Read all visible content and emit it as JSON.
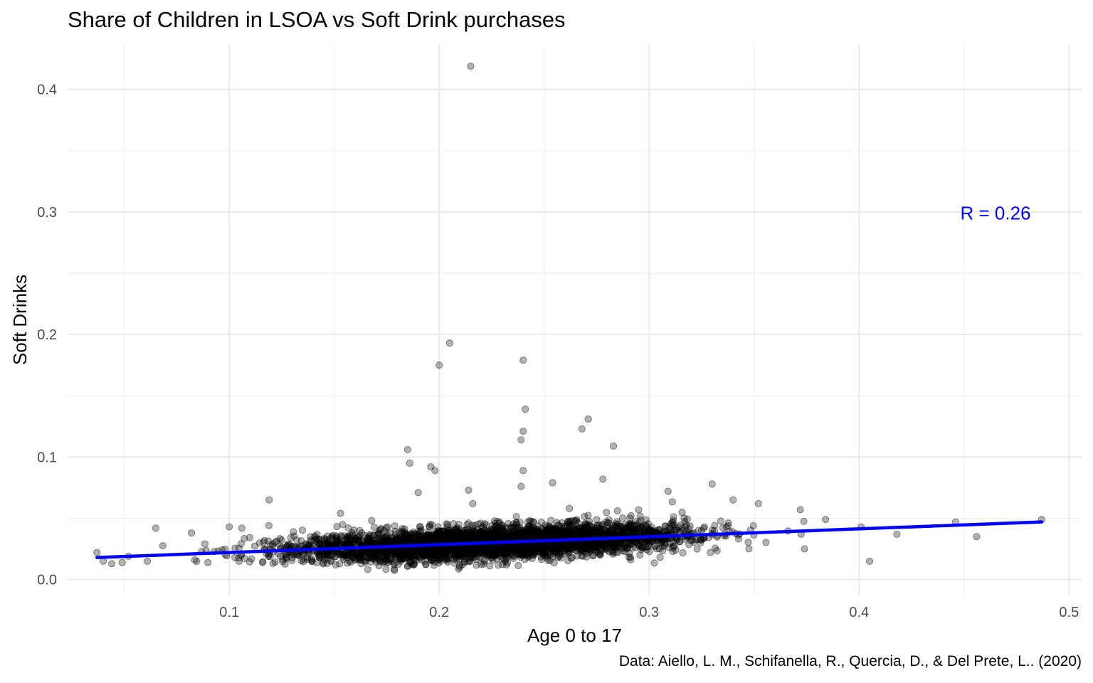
{
  "chart_data": {
    "type": "scatter",
    "title": "Share of Children in LSOA vs Soft Drink purchases",
    "xlabel": "Age 0 to 17",
    "ylabel": "Soft Drinks",
    "caption": "Data: Aiello, L. M., Schifanella, R., Quercia, D., & Del Prete, L.. (2020)",
    "xlim": [
      0.023,
      0.506
    ],
    "ylim": [
      -0.013,
      0.437
    ],
    "x_ticks": [
      "0.1",
      "0.2",
      "0.3",
      "0.4",
      "0.5"
    ],
    "y_ticks": [
      "0.0",
      "0.1",
      "0.2",
      "0.3",
      "0.4"
    ],
    "grid": true,
    "annotation": {
      "text": "R = 0.26",
      "x": 0.465,
      "y": 0.299,
      "color": "#0000ff"
    },
    "trend_line": {
      "x": [
        0.037,
        0.487
      ],
      "y": [
        0.018,
        0.047
      ],
      "color": "#0000ff"
    },
    "point_color": "#000000",
    "point_alpha": 0.3,
    "n_points_approx": 4000,
    "outliers": [
      {
        "x": 0.215,
        "y": 0.419
      },
      {
        "x": 0.205,
        "y": 0.193
      },
      {
        "x": 0.2,
        "y": 0.175
      },
      {
        "x": 0.24,
        "y": 0.179
      },
      {
        "x": 0.241,
        "y": 0.139
      },
      {
        "x": 0.24,
        "y": 0.121
      },
      {
        "x": 0.239,
        "y": 0.114
      },
      {
        "x": 0.271,
        "y": 0.131
      },
      {
        "x": 0.268,
        "y": 0.123
      },
      {
        "x": 0.283,
        "y": 0.109
      },
      {
        "x": 0.185,
        "y": 0.106
      },
      {
        "x": 0.186,
        "y": 0.095
      },
      {
        "x": 0.196,
        "y": 0.092
      },
      {
        "x": 0.198,
        "y": 0.089
      },
      {
        "x": 0.24,
        "y": 0.089
      },
      {
        "x": 0.278,
        "y": 0.082
      },
      {
        "x": 0.254,
        "y": 0.079
      },
      {
        "x": 0.33,
        "y": 0.078
      },
      {
        "x": 0.239,
        "y": 0.076
      },
      {
        "x": 0.309,
        "y": 0.072
      },
      {
        "x": 0.19,
        "y": 0.071
      },
      {
        "x": 0.214,
        "y": 0.073
      },
      {
        "x": 0.119,
        "y": 0.065
      },
      {
        "x": 0.04,
        "y": 0.015
      },
      {
        "x": 0.052,
        "y": 0.019
      },
      {
        "x": 0.065,
        "y": 0.042
      },
      {
        "x": 0.082,
        "y": 0.038
      },
      {
        "x": 0.1,
        "y": 0.043
      },
      {
        "x": 0.106,
        "y": 0.042
      },
      {
        "x": 0.405,
        "y": 0.015
      },
      {
        "x": 0.418,
        "y": 0.037
      },
      {
        "x": 0.446,
        "y": 0.047
      },
      {
        "x": 0.456,
        "y": 0.035
      },
      {
        "x": 0.487,
        "y": 0.049
      },
      {
        "x": 0.384,
        "y": 0.049
      },
      {
        "x": 0.372,
        "y": 0.057
      },
      {
        "x": 0.374,
        "y": 0.025
      },
      {
        "x": 0.401,
        "y": 0.043
      },
      {
        "x": 0.352,
        "y": 0.062
      },
      {
        "x": 0.34,
        "y": 0.065
      },
      {
        "x": 0.153,
        "y": 0.054
      },
      {
        "x": 0.155,
        "y": 0.029
      },
      {
        "x": 0.216,
        "y": 0.062
      },
      {
        "x": 0.262,
        "y": 0.058
      },
      {
        "x": 0.295,
        "y": 0.057
      },
      {
        "x": 0.049,
        "y": 0.014
      },
      {
        "x": 0.037,
        "y": 0.022
      },
      {
        "x": 0.061,
        "y": 0.015
      }
    ]
  }
}
